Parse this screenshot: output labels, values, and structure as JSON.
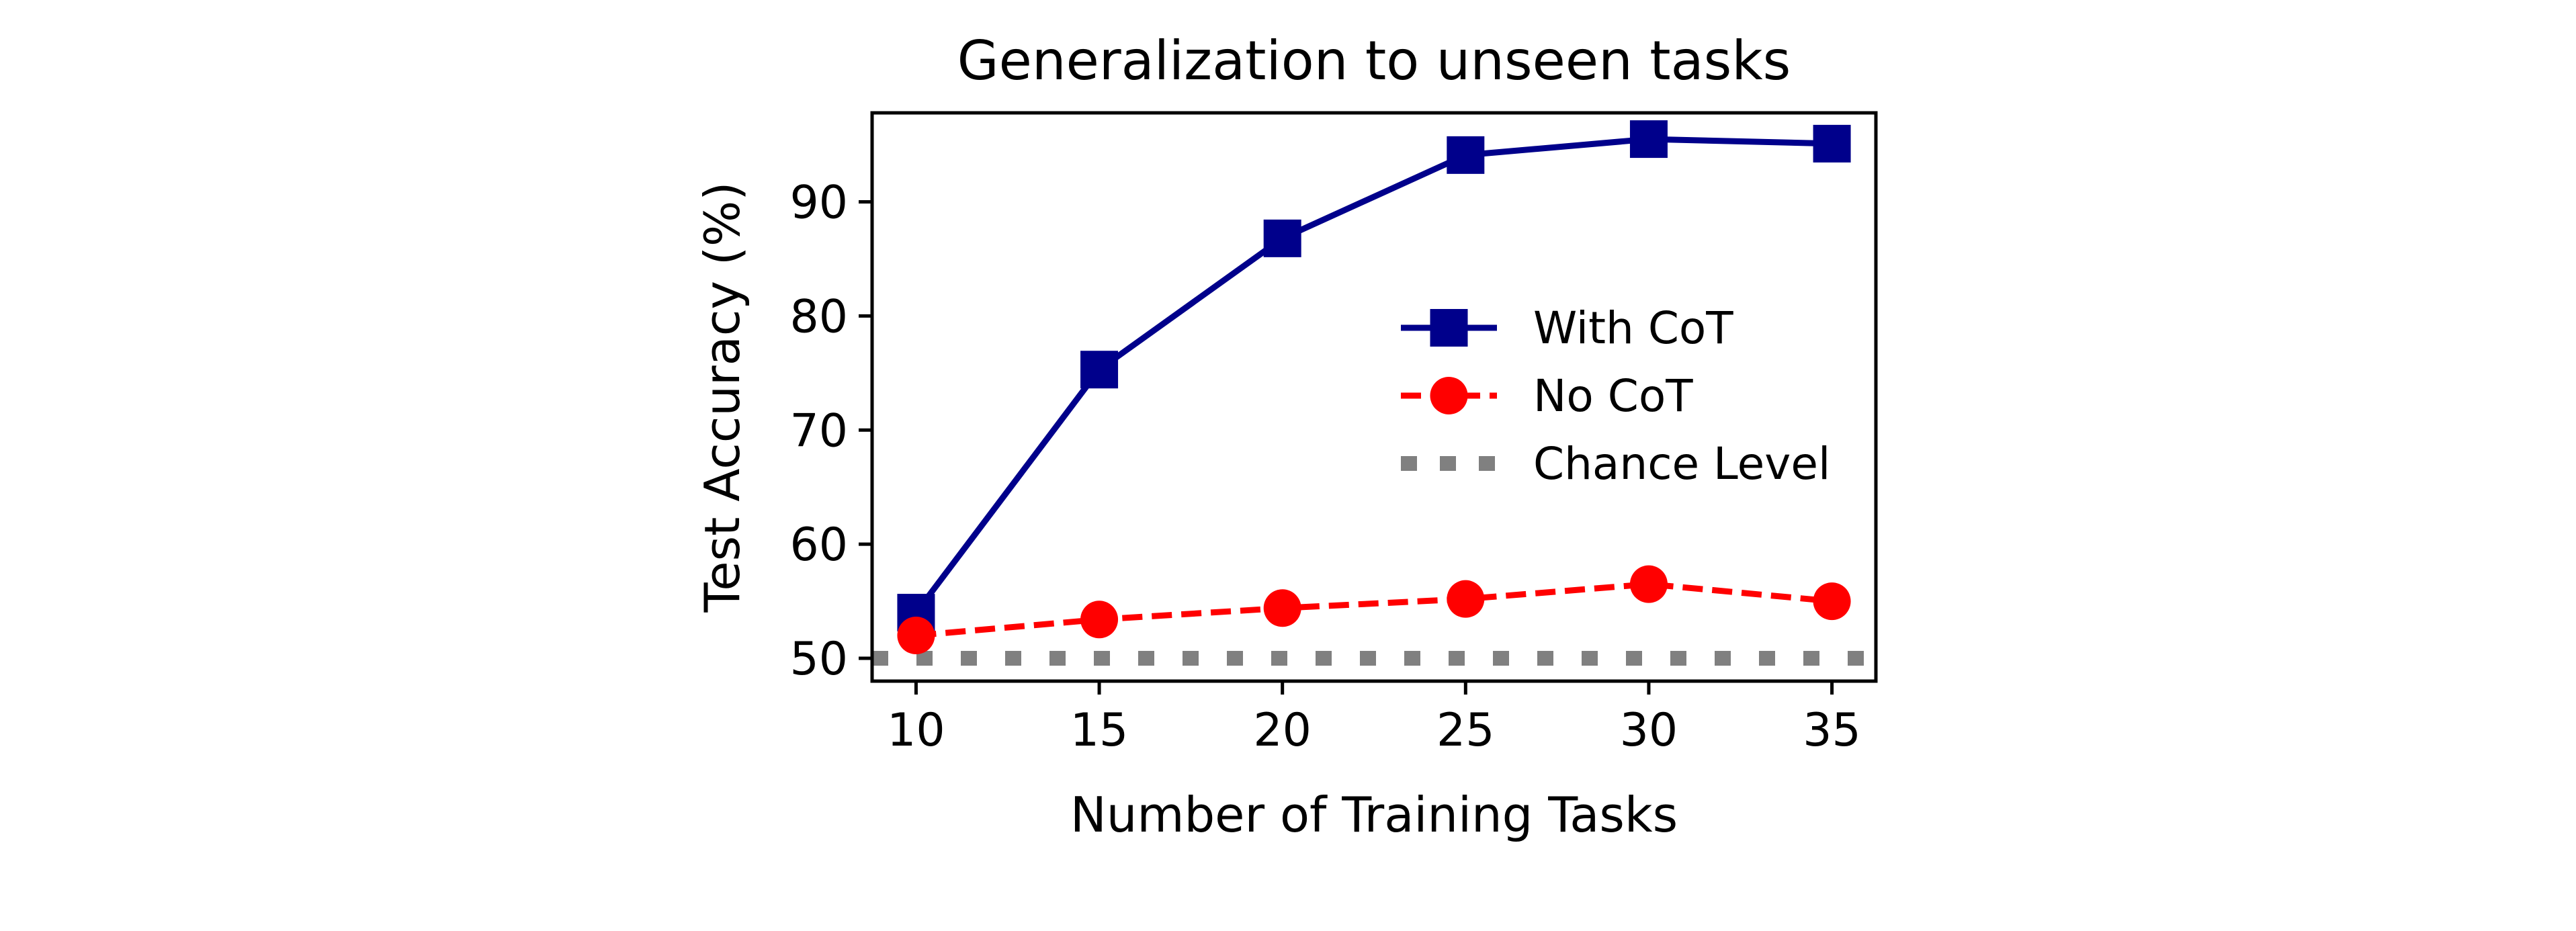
{
  "chart_data": {
    "type": "line",
    "title": "Generalization to unseen tasks",
    "xlabel": "Number of Training Tasks",
    "ylabel": "Test Accuracy (%)",
    "xlim": [
      8.8,
      36.2
    ],
    "ylim": [
      48,
      97.8
    ],
    "xticks": [
      10,
      15,
      20,
      25,
      30,
      35
    ],
    "yticks": [
      50,
      60,
      70,
      80,
      90
    ],
    "x": [
      10,
      15,
      20,
      25,
      30,
      35
    ],
    "grid": false,
    "legend_position": "center-right",
    "series": [
      {
        "name": "With CoT",
        "values": [
          54,
          75.3,
          86.8,
          94.1,
          95.5,
          95.1
        ],
        "color": "#00008b",
        "linestyle": "solid",
        "marker": "square"
      },
      {
        "name": "No CoT",
        "values": [
          52,
          53.4,
          54.4,
          55.2,
          56.5,
          55.0
        ],
        "color": "#ff0000",
        "linestyle": "dashed",
        "marker": "circle"
      }
    ],
    "reference_lines": [
      {
        "name": "Chance Level",
        "y": 50,
        "color": "#808080",
        "linestyle": "dotted"
      }
    ]
  }
}
